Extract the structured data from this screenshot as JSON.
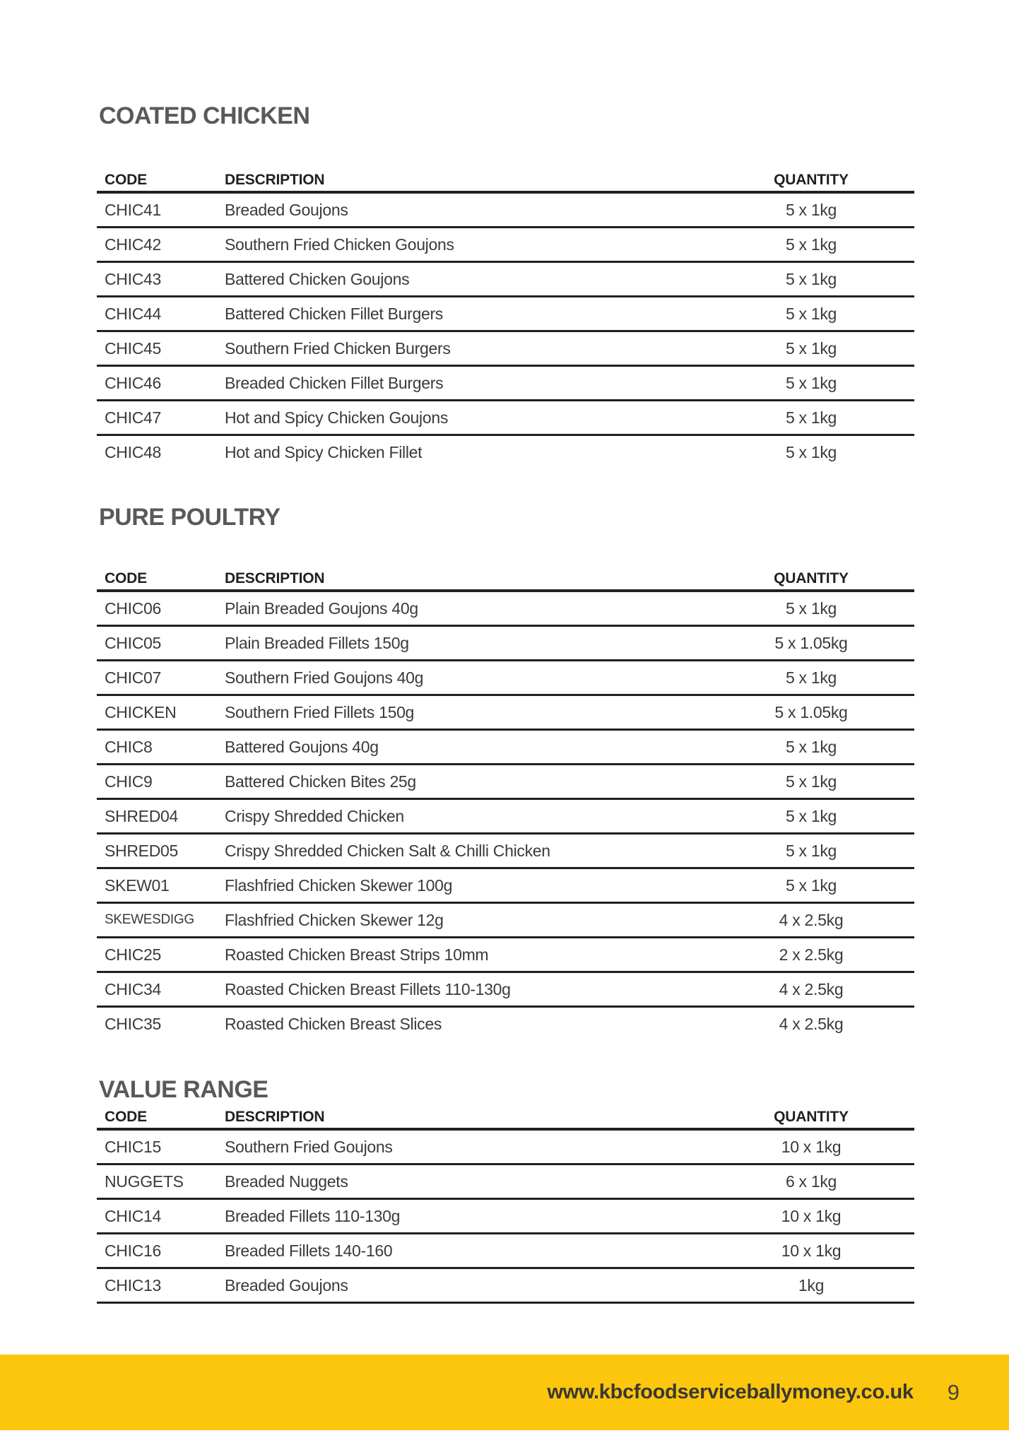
{
  "colors": {
    "accent_yellow": "#FCC60D",
    "heading_gray": "#58595B",
    "text_dark": "#3A3A3C",
    "line_black": "#231F20"
  },
  "sections": [
    {
      "title": "COATED CHICKEN",
      "columns": [
        "CODE",
        "DESCRIPTION",
        "QUANTITY"
      ],
      "rows": [
        {
          "code": "CHIC41",
          "description": "Breaded Goujons",
          "quantity": "5 x 1kg"
        },
        {
          "code": "CHIC42",
          "description": "Southern Fried Chicken Goujons",
          "quantity": "5 x 1kg"
        },
        {
          "code": "CHIC43",
          "description": "Battered Chicken Goujons",
          "quantity": "5 x 1kg"
        },
        {
          "code": "CHIC44",
          "description": "Battered Chicken Fillet Burgers",
          "quantity": "5 x 1kg"
        },
        {
          "code": "CHIC45",
          "description": "Southern Fried Chicken Burgers",
          "quantity": "5 x 1kg"
        },
        {
          "code": "CHIC46",
          "description": "Breaded Chicken Fillet Burgers",
          "quantity": "5 x 1kg"
        },
        {
          "code": "CHIC47",
          "description": "Hot and Spicy Chicken Goujons",
          "quantity": "5 x 1kg"
        },
        {
          "code": "CHIC48",
          "description": "Hot and Spicy Chicken Fillet",
          "quantity": "5 x 1kg"
        }
      ]
    },
    {
      "title": "PURE POULTRY",
      "columns": [
        "CODE",
        "DESCRIPTION",
        "QUANTITY"
      ],
      "rows": [
        {
          "code": "CHIC06",
          "description": "Plain Breaded Goujons 40g",
          "quantity": "5 x 1kg"
        },
        {
          "code": "CHIC05",
          "description": "Plain Breaded Fillets 150g",
          "quantity": "5 x 1.05kg"
        },
        {
          "code": "CHIC07",
          "description": "Southern Fried Goujons 40g",
          "quantity": "5 x 1kg"
        },
        {
          "code": "CHICKEN",
          "description": "Southern Fried Fillets 150g",
          "quantity": "5 x 1.05kg"
        },
        {
          "code": "CHIC8",
          "description": "Battered Goujons 40g",
          "quantity": "5 x 1kg"
        },
        {
          "code": "CHIC9",
          "description": "Battered Chicken Bites 25g",
          "quantity": "5 x 1kg"
        },
        {
          "code": "SHRED04",
          "description": "Crispy Shredded Chicken",
          "quantity": "5 x 1kg"
        },
        {
          "code": "SHRED05",
          "description": "Crispy Shredded Chicken Salt & Chilli Chicken",
          "quantity": "5 x 1kg"
        },
        {
          "code": "SKEW01",
          "description": "Flashfried Chicken Skewer 100g",
          "quantity": "5 x 1kg"
        },
        {
          "code": "SKEWESDIGG",
          "description": "Flashfried Chicken Skewer 12g",
          "quantity": "4 x 2.5kg",
          "code_small": true
        },
        {
          "code": "CHIC25",
          "description": "Roasted Chicken Breast Strips 10mm",
          "quantity": "2 x 2.5kg"
        },
        {
          "code": "CHIC34",
          "description": "Roasted Chicken Breast Fillets 110-130g",
          "quantity": "4 x 2.5kg"
        },
        {
          "code": "CHIC35",
          "description": "Roasted Chicken Breast Slices",
          "quantity": "4 x 2.5kg"
        }
      ]
    },
    {
      "title": "VALUE RANGE",
      "columns": [
        "CODE",
        "DESCRIPTION",
        "QUANTITY"
      ],
      "rows": [
        {
          "code": "CHIC15",
          "description": "Southern Fried Goujons",
          "quantity": "10 x 1kg"
        },
        {
          "code": "NUGGETS",
          "description": "Breaded Nuggets",
          "quantity": "6 x 1kg"
        },
        {
          "code": "CHIC14",
          "description": "Breaded Fillets 110-130g",
          "quantity": "10 x 1kg"
        },
        {
          "code": "CHIC16",
          "description": "Breaded Fillets 140-160",
          "quantity": "10 x 1kg"
        },
        {
          "code": "CHIC13",
          "description": "Breaded Goujons",
          "quantity": "1kg"
        }
      ]
    }
  ],
  "footer": {
    "url": "www.kbcfoodserviceballymoney.co.uk",
    "page_number": "9"
  }
}
